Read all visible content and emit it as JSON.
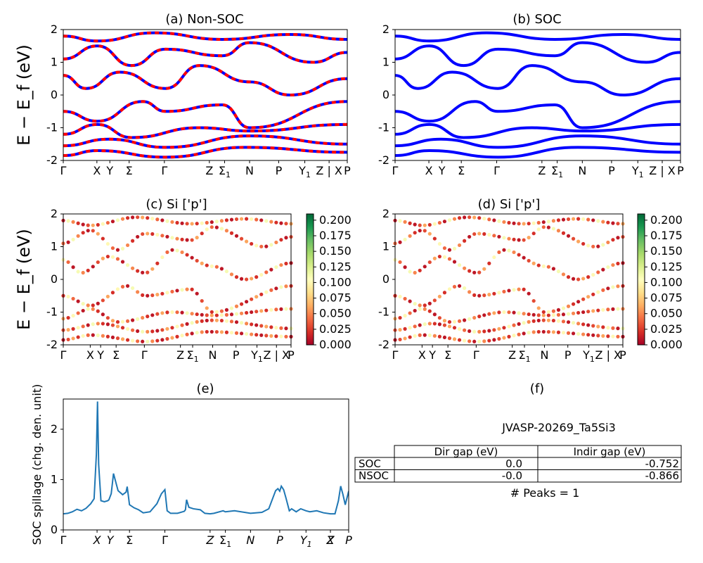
{
  "colors": {
    "nonsoc_a": "#0000ff",
    "nonsoc_b": "#ff0000",
    "soc": "#0000ff",
    "spillage": "#1f77b4",
    "colormap": [
      "#a50026",
      "#d73027",
      "#f46d43",
      "#fdae61",
      "#fee08b",
      "#ffffbf",
      "#d9ef8b",
      "#a6d96a",
      "#66bd63",
      "#1a9850",
      "#006837"
    ]
  },
  "kpath": {
    "labels": [
      "Γ",
      "X",
      "Y",
      "Σ",
      "Γ",
      "Z",
      "Σ",
      "N",
      "P",
      "Y",
      "Z | X",
      "P"
    ],
    "subscripts": [
      "",
      "",
      "",
      "",
      "",
      "",
      "1",
      "",
      "",
      "1",
      "",
      ""
    ],
    "positions": [
      0,
      0.148,
      0.205,
      0.29,
      0.445,
      0.643,
      0.71,
      0.82,
      0.948,
      1.063,
      1.17,
      1.25
    ]
  },
  "kpath_e": {
    "labels": [
      "Γ",
      "X",
      "Y",
      "Σ",
      "Γ",
      "Z",
      "Σ",
      "N",
      "P",
      "Y",
      "Z",
      "X",
      "P"
    ],
    "subscripts": [
      "",
      "",
      "",
      "",
      "",
      "",
      "1",
      "",
      "",
      "1",
      "",
      "",
      ""
    ],
    "positions": [
      0,
      0.148,
      0.205,
      0.29,
      0.445,
      0.643,
      0.71,
      0.82,
      0.948,
      1.063,
      1.17,
      1.17,
      1.25
    ]
  },
  "chart_data": [
    {
      "type": "line",
      "title": "(a) Non-SOC",
      "ylabel": "E − E_f (eV)",
      "ylim": [
        -2,
        2
      ],
      "yticks": [
        "-2",
        "-1",
        "0",
        "1",
        "2"
      ],
      "series": [
        {
          "points": [
            [
              0,
              -1.85
            ],
            [
              0.15,
              -1.7
            ],
            [
              0.45,
              -1.9
            ],
            [
              0.8,
              -1.6
            ],
            [
              1.25,
              -1.75
            ]
          ]
        },
        {
          "points": [
            [
              0,
              -1.55
            ],
            [
              0.2,
              -1.35
            ],
            [
              0.45,
              -1.6
            ],
            [
              0.82,
              -1.25
            ],
            [
              1.25,
              -1.5
            ]
          ]
        },
        {
          "points": [
            [
              0,
              -1.2
            ],
            [
              0.15,
              -0.9
            ],
            [
              0.3,
              -1.3
            ],
            [
              0.6,
              -1.0
            ],
            [
              0.82,
              -1.1
            ],
            [
              1.25,
              -0.9
            ]
          ]
        },
        {
          "points": [
            [
              0,
              -0.5
            ],
            [
              0.15,
              -0.8
            ],
            [
              0.35,
              -0.2
            ],
            [
              0.45,
              -0.5
            ],
            [
              0.7,
              -0.3
            ],
            [
              0.82,
              -1.0
            ],
            [
              1.25,
              -0.2
            ]
          ]
        },
        {
          "points": [
            [
              0,
              0.6
            ],
            [
              0.1,
              0.2
            ],
            [
              0.25,
              0.7
            ],
            [
              0.45,
              0.2
            ],
            [
              0.6,
              0.9
            ],
            [
              0.82,
              0.4
            ],
            [
              1.0,
              0.0
            ],
            [
              1.25,
              0.5
            ]
          ]
        },
        {
          "points": [
            [
              0,
              1.1
            ],
            [
              0.15,
              1.5
            ],
            [
              0.3,
              0.9
            ],
            [
              0.45,
              1.4
            ],
            [
              0.7,
              1.2
            ],
            [
              0.82,
              1.6
            ],
            [
              1.1,
              1.0
            ],
            [
              1.25,
              1.3
            ]
          ]
        },
        {
          "points": [
            [
              0,
              1.8
            ],
            [
              0.15,
              1.65
            ],
            [
              0.4,
              1.9
            ],
            [
              0.7,
              1.7
            ],
            [
              1.0,
              1.85
            ],
            [
              1.25,
              1.7
            ]
          ]
        }
      ]
    },
    {
      "type": "line",
      "title": "(b) SOC",
      "ylim": [
        -2,
        2
      ],
      "yticks": [
        "-2",
        "-1",
        "0",
        "1",
        "2"
      ],
      "series": [
        {
          "points": [
            [
              0,
              -1.85
            ],
            [
              0.15,
              -1.7
            ],
            [
              0.45,
              -1.9
            ],
            [
              0.8,
              -1.6
            ],
            [
              1.25,
              -1.75
            ]
          ]
        },
        {
          "points": [
            [
              0,
              -1.55
            ],
            [
              0.2,
              -1.35
            ],
            [
              0.45,
              -1.6
            ],
            [
              0.82,
              -1.25
            ],
            [
              1.25,
              -1.5
            ]
          ]
        },
        {
          "points": [
            [
              0,
              -1.2
            ],
            [
              0.15,
              -0.9
            ],
            [
              0.3,
              -1.3
            ],
            [
              0.6,
              -1.0
            ],
            [
              0.82,
              -1.1
            ],
            [
              1.25,
              -0.9
            ]
          ]
        },
        {
          "points": [
            [
              0,
              -0.5
            ],
            [
              0.15,
              -0.8
            ],
            [
              0.35,
              -0.2
            ],
            [
              0.45,
              -0.5
            ],
            [
              0.7,
              -0.3
            ],
            [
              0.82,
              -1.0
            ],
            [
              1.25,
              -0.2
            ]
          ]
        },
        {
          "points": [
            [
              0,
              0.6
            ],
            [
              0.1,
              0.2
            ],
            [
              0.25,
              0.7
            ],
            [
              0.45,
              0.2
            ],
            [
              0.6,
              0.9
            ],
            [
              0.82,
              0.4
            ],
            [
              1.0,
              0.0
            ],
            [
              1.25,
              0.5
            ]
          ]
        },
        {
          "points": [
            [
              0,
              1.1
            ],
            [
              0.15,
              1.5
            ],
            [
              0.3,
              0.9
            ],
            [
              0.45,
              1.4
            ],
            [
              0.7,
              1.2
            ],
            [
              0.82,
              1.6
            ],
            [
              1.1,
              1.0
            ],
            [
              1.25,
              1.3
            ]
          ]
        },
        {
          "points": [
            [
              0,
              1.8
            ],
            [
              0.15,
              1.65
            ],
            [
              0.4,
              1.9
            ],
            [
              0.7,
              1.7
            ],
            [
              1.0,
              1.85
            ],
            [
              1.25,
              1.7
            ]
          ]
        }
      ]
    },
    {
      "type": "scatter",
      "title": "(c)  Si ['p']",
      "ylabel": "E − E_f (eV)",
      "ylim": [
        -2,
        2
      ],
      "yticks": [
        "-2",
        "-1",
        "0",
        "1",
        "2"
      ],
      "colorbar_ticks": [
        "0.000",
        "0.025",
        "0.050",
        "0.075",
        "0.100",
        "0.125",
        "0.150",
        "0.175",
        "0.200"
      ],
      "colorbar_range": [
        0,
        0.21
      ],
      "point_values": [
        0.01,
        0.03,
        0.06,
        0.02,
        0.1,
        0.04,
        0.01,
        0.11,
        0.05,
        0.02
      ]
    },
    {
      "type": "scatter",
      "title": "(d) Si ['p']",
      "ylim": [
        -2,
        2
      ],
      "yticks": [
        "-2",
        "-1",
        "0",
        "1",
        "2"
      ],
      "colorbar_ticks": [
        "0.000",
        "0.025",
        "0.050",
        "0.075",
        "0.100",
        "0.125",
        "0.150",
        "0.175",
        "0.200"
      ],
      "colorbar_range": [
        0,
        0.21
      ],
      "point_values": [
        0.01,
        0.03,
        0.06,
        0.02,
        0.1,
        0.04,
        0.01,
        0.11,
        0.05,
        0.02
      ]
    },
    {
      "type": "line",
      "title": "(e)",
      "ylabel": "SOC spillage (chg. den. unit)",
      "ylim": [
        0,
        2.6
      ],
      "yticks": [
        "0",
        "1",
        "2"
      ],
      "x": [
        0,
        0.02,
        0.04,
        0.06,
        0.08,
        0.1,
        0.12,
        0.135,
        0.145,
        0.15,
        0.155,
        0.165,
        0.18,
        0.195,
        0.2,
        0.21,
        0.22,
        0.24,
        0.26,
        0.275,
        0.28,
        0.29,
        0.31,
        0.33,
        0.35,
        0.38,
        0.41,
        0.43,
        0.445,
        0.455,
        0.47,
        0.5,
        0.53,
        0.535,
        0.54,
        0.55,
        0.57,
        0.6,
        0.62,
        0.643,
        0.66,
        0.7,
        0.71,
        0.75,
        0.82,
        0.87,
        0.9,
        0.93,
        0.94,
        0.948,
        0.955,
        0.965,
        0.975,
        0.99,
        1.0,
        1.02,
        1.04,
        1.063,
        1.08,
        1.11,
        1.14,
        1.17,
        1.19,
        1.205,
        1.215,
        1.225,
        1.235,
        1.25
      ],
      "values": [
        0.32,
        0.33,
        0.36,
        0.41,
        0.38,
        0.43,
        0.52,
        0.62,
        1.5,
        2.55,
        1.3,
        0.58,
        0.56,
        0.58,
        0.6,
        0.72,
        1.12,
        0.78,
        0.7,
        0.75,
        0.86,
        0.5,
        0.44,
        0.4,
        0.34,
        0.36,
        0.52,
        0.72,
        0.8,
        0.38,
        0.33,
        0.33,
        0.37,
        0.4,
        0.6,
        0.45,
        0.42,
        0.4,
        0.33,
        0.32,
        0.33,
        0.38,
        0.36,
        0.38,
        0.33,
        0.35,
        0.42,
        0.78,
        0.82,
        0.77,
        0.87,
        0.8,
        0.64,
        0.38,
        0.42,
        0.36,
        0.42,
        0.38,
        0.36,
        0.38,
        0.34,
        0.32,
        0.32,
        0.58,
        0.87,
        0.7,
        0.5,
        0.77
      ],
      "xlim": [
        0,
        1.25
      ]
    }
  ],
  "info": {
    "title": "(f)",
    "material": "JVASP-20269_Ta5Si3",
    "table": {
      "headers": [
        "",
        "Dir gap (eV)",
        "Indir gap (eV)"
      ],
      "rows": [
        [
          "SOC",
          "0.0",
          "-0.752"
        ],
        [
          "NSOC",
          "-0.0",
          "-0.866"
        ]
      ]
    },
    "peaks": "# Peaks = 1"
  }
}
